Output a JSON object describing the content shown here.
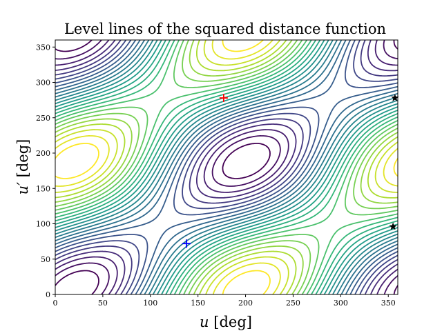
{
  "chart_data": {
    "type": "contour",
    "title": "Level lines of the squared distance function",
    "xlabel": {
      "symbol": "u",
      "unit": " [deg]"
    },
    "ylabel": {
      "symbol": "u′",
      "unit": " [deg]"
    },
    "xlim": [
      0,
      360
    ],
    "ylim": [
      0,
      360
    ],
    "xticks": [
      "0",
      "50",
      "100",
      "150",
      "200",
      "250",
      "300",
      "350"
    ],
    "yticks": [
      "0",
      "50",
      "100",
      "150",
      "200",
      "250",
      "300",
      "350"
    ],
    "colormap": "viridis",
    "levels": 25,
    "maximum_marker": {
      "x": 177,
      "y": 278,
      "symbol": "plus",
      "color": "#ff0000"
    },
    "minimum_marker": {
      "x": 138,
      "y": 72,
      "symbol": "plus",
      "color": "#0000ff"
    },
    "critical_points": [
      {
        "x": 357,
        "y": 278,
        "symbol": "star",
        "color": "#000000"
      },
      {
        "x": 355,
        "y": 96,
        "symbol": "star",
        "color": "#000000"
      }
    ]
  }
}
